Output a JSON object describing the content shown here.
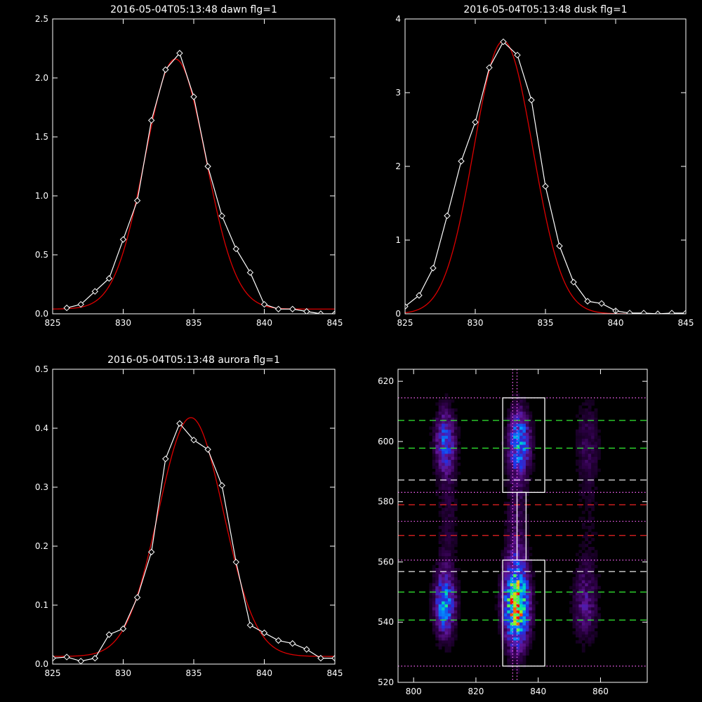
{
  "chart_data": [
    {
      "type": "line",
      "title": "2016-05-04T05:13:48 dawn flg=1",
      "xlim": [
        825,
        845
      ],
      "ylim": [
        0,
        2.5
      ],
      "xticks": [
        825,
        830,
        835,
        840,
        845
      ],
      "yticks": [
        0.0,
        0.5,
        1.0,
        1.5,
        2.0,
        2.5
      ],
      "ytick_labels": [
        "0.0",
        "0.5",
        "1.0",
        "1.5",
        "2.0",
        "2.5"
      ],
      "series": [
        {
          "style": "data",
          "color": "#ffffff",
          "x": [
            826,
            827,
            828,
            829,
            830,
            831,
            832,
            833,
            834,
            835,
            836,
            837,
            838,
            839,
            840,
            841,
            842,
            843,
            844,
            845
          ],
          "y": [
            0.05,
            0.08,
            0.19,
            0.3,
            0.63,
            0.96,
            1.64,
            2.07,
            2.21,
            1.84,
            1.25,
            0.83,
            0.55,
            0.35,
            0.08,
            0.04,
            0.04,
            0.02,
            0.0,
            0.0
          ]
        },
        {
          "style": "fit",
          "color": "#dd0000",
          "model": "gaussian",
          "amplitude": 2.12,
          "center": 833.7,
          "sigma": 2.15,
          "baseline": 0.04
        }
      ]
    },
    {
      "type": "line",
      "title": "2016-05-04T05:13:48 dusk flg=1",
      "xlim": [
        825,
        845
      ],
      "ylim": [
        0,
        4
      ],
      "xticks": [
        825,
        830,
        835,
        840,
        845
      ],
      "yticks": [
        0,
        1,
        2,
        3,
        4
      ],
      "ytick_labels": [
        "0",
        "1",
        "2",
        "3",
        "4"
      ],
      "series": [
        {
          "style": "data",
          "color": "#ffffff",
          "x": [
            825,
            826,
            827,
            828,
            829,
            830,
            831,
            832,
            833,
            834,
            835,
            836,
            837,
            838,
            839,
            840,
            841,
            842,
            843,
            844,
            845
          ],
          "y": [
            0.1,
            0.25,
            0.62,
            1.33,
            2.07,
            2.6,
            3.34,
            3.69,
            3.51,
            2.9,
            1.73,
            0.92,
            0.43,
            0.17,
            0.14,
            0.04,
            0.01,
            0.01,
            0.0,
            0.01,
            0.01
          ]
        },
        {
          "style": "fit",
          "color": "#dd0000",
          "model": "gaussian",
          "amplitude": 3.7,
          "center": 832.0,
          "sigma": 2.1,
          "baseline": 0.0
        }
      ]
    },
    {
      "type": "line",
      "title": "2016-05-04T05:13:48 aurora flg=1",
      "xlim": [
        825,
        845
      ],
      "ylim": [
        0,
        0.5
      ],
      "xticks": [
        825,
        830,
        835,
        840,
        845
      ],
      "yticks": [
        0.0,
        0.1,
        0.2,
        0.3,
        0.4,
        0.5
      ],
      "ytick_labels": [
        "0.0",
        "0.1",
        "0.2",
        "0.3",
        "0.4",
        "0.5"
      ],
      "series": [
        {
          "style": "data",
          "color": "#ffffff",
          "x": [
            825,
            826,
            827,
            828,
            829,
            830,
            831,
            832,
            833,
            834,
            835,
            836,
            837,
            838,
            839,
            840,
            841,
            842,
            843,
            844,
            845
          ],
          "y": [
            0.01,
            0.012,
            0.005,
            0.01,
            0.05,
            0.06,
            0.113,
            0.19,
            0.348,
            0.408,
            0.38,
            0.364,
            0.303,
            0.173,
            0.066,
            0.053,
            0.04,
            0.035,
            0.025,
            0.01,
            0.01
          ]
        },
        {
          "style": "fit",
          "color": "#dd0000",
          "model": "gaussian",
          "amplitude": 0.405,
          "center": 834.8,
          "sigma": 2.3,
          "baseline": 0.013
        }
      ]
    },
    {
      "type": "heatmap",
      "title": "",
      "xlim": [
        795,
        875
      ],
      "ylim": [
        520,
        624
      ],
      "xticks": [
        800,
        820,
        840,
        860
      ],
      "yticks": [
        520,
        540,
        560,
        580,
        600,
        620
      ],
      "colormap": "rainbow",
      "intensity_blobs": [
        {
          "x": 810,
          "y": 546,
          "sx": 2.2,
          "sy": 7.0,
          "amp": 0.55
        },
        {
          "x": 810,
          "y": 600,
          "sx": 2.2,
          "sy": 7.0,
          "amp": 0.4
        },
        {
          "x": 811,
          "y": 575,
          "sx": 2.5,
          "sy": 22,
          "amp": 0.1
        },
        {
          "x": 833,
          "y": 546,
          "sx": 2.6,
          "sy": 9.0,
          "amp": 1.0
        },
        {
          "x": 834,
          "y": 600,
          "sx": 2.3,
          "sy": 7.0,
          "amp": 0.55
        },
        {
          "x": 833,
          "y": 574,
          "sx": 2.5,
          "sy": 18,
          "amp": 0.15
        },
        {
          "x": 855,
          "y": 546,
          "sx": 2.6,
          "sy": 8.0,
          "amp": 0.22
        },
        {
          "x": 856,
          "y": 600,
          "sx": 2.6,
          "sy": 9.0,
          "amp": 0.12
        },
        {
          "x": 856,
          "y": 574,
          "sx": 3.0,
          "sy": 25,
          "amp": 0.06
        }
      ],
      "boxes": [
        {
          "x": [
            828.6,
            842.1
          ],
          "y": [
            525.4,
            560.6
          ],
          "color": "#ffffff"
        },
        {
          "x": [
            828.6,
            842.1
          ],
          "y": [
            583.1,
            614.5
          ],
          "color": "#ffffff"
        },
        {
          "x": [
            833.2,
            836.1
          ],
          "y": [
            560.6,
            583.1
          ],
          "color": "#ffffff"
        }
      ],
      "hlines": [
        {
          "y": 614.5,
          "style": "dotted",
          "color": "#ff66ff"
        },
        {
          "y": 607.0,
          "style": "dashed",
          "color": "#33ee33"
        },
        {
          "y": 597.8,
          "style": "dashed",
          "color": "#33ee33"
        },
        {
          "y": 587.2,
          "style": "dashed",
          "color": "#ffffff"
        },
        {
          "y": 583.1,
          "style": "dotted",
          "color": "#ff66ff"
        },
        {
          "y": 579.0,
          "style": "dashed",
          "color": "#ee2222"
        },
        {
          "y": 573.5,
          "style": "dotted",
          "color": "#ff66ff"
        },
        {
          "y": 568.8,
          "style": "dashed",
          "color": "#ee2222"
        },
        {
          "y": 560.6,
          "style": "dotted",
          "color": "#ff66ff"
        },
        {
          "y": 556.8,
          "style": "dashed",
          "color": "#ffffff"
        },
        {
          "y": 550.0,
          "style": "dashed",
          "color": "#33ee33"
        },
        {
          "y": 540.7,
          "style": "dashed",
          "color": "#33ee33"
        },
        {
          "y": 525.4,
          "style": "dotted",
          "color": "#ff66ff"
        }
      ],
      "vlines": [
        {
          "x": 831.8,
          "style": "dotted",
          "color": "#ff66ff"
        },
        {
          "x": 833.2,
          "style": "dotted",
          "color": "#ff66ff"
        }
      ]
    }
  ]
}
